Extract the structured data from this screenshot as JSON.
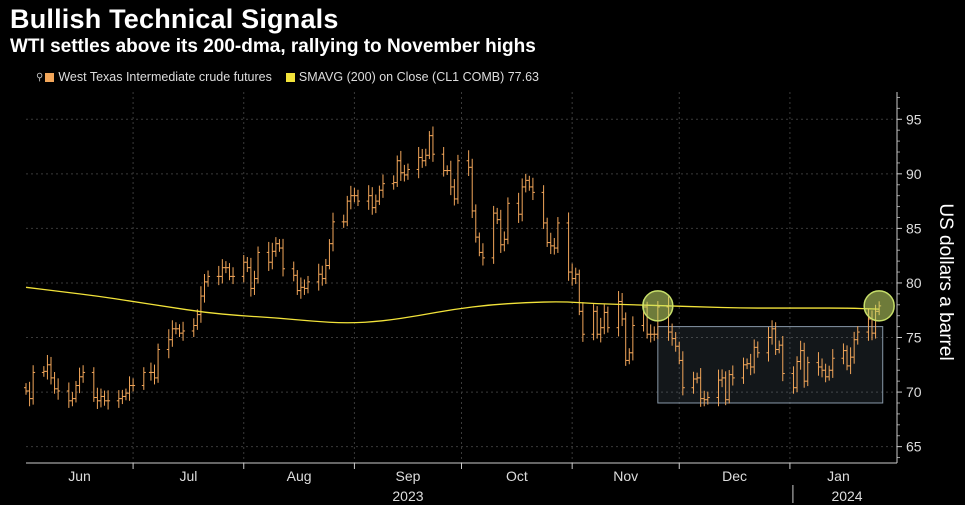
{
  "colors": {
    "price": "#f2a65a",
    "sma": "#f2e33a",
    "background": "#000000",
    "grid": "#3a3a3a",
    "highlight": "#c8e06a",
    "box": "#8898a8"
  },
  "chart_data": {
    "type": "ohlc",
    "title": "Bullish Technical Signals",
    "subtitle": "WTI settles above its 200-dma, rallying to November highs",
    "ylabel": "US dollars a barrel",
    "ylim": [
      63.5,
      97.5
    ],
    "yticks": [
      65,
      70,
      75,
      80,
      85,
      90,
      95
    ],
    "x_range_days": [
      0,
      244
    ],
    "months": [
      {
        "label": "Jun",
        "start_day": 0
      },
      {
        "label": "Jul",
        "start_day": 30
      },
      {
        "label": "Aug",
        "start_day": 61
      },
      {
        "label": "Sep",
        "start_day": 92
      },
      {
        "label": "Oct",
        "start_day": 122
      },
      {
        "label": "Nov",
        "start_day": 153
      },
      {
        "label": "Dec",
        "start_day": 183
      },
      {
        "label": "Jan",
        "start_day": 214
      }
    ],
    "years": [
      {
        "label": "2023",
        "center_day": 107
      },
      {
        "label": "2024",
        "center_day": 230
      }
    ],
    "legend": [
      {
        "label": "West Texas Intermediate crude futures",
        "icon": "bar-icon"
      },
      {
        "label": "SMAVG (200)  on Close (CL1 COMB) 77.63"
      }
    ],
    "series": [
      {
        "name": "West Texas Intermediate crude futures",
        "closes": [
          [
            0,
            70.1
          ],
          [
            1,
            69.4
          ],
          [
            2,
            71.8
          ],
          [
            5,
            71.9
          ],
          [
            6,
            72.5
          ],
          [
            7,
            71.3
          ],
          [
            8,
            70.3
          ],
          [
            9,
            70.1
          ],
          [
            12,
            69.2
          ],
          [
            13,
            69.4
          ],
          [
            14,
            70.6
          ],
          [
            15,
            71.4
          ],
          [
            16,
            71.8
          ],
          [
            19,
            69.5
          ],
          [
            20,
            69.2
          ],
          [
            21,
            69.6
          ],
          [
            22,
            69.2
          ],
          [
            23,
            69.2
          ],
          [
            26,
            69.4
          ],
          [
            27,
            69.6
          ],
          [
            28,
            69.9
          ],
          [
            29,
            70.6
          ],
          [
            30,
            70.6
          ],
          [
            33,
            71.8
          ],
          [
            35,
            71.8
          ],
          [
            36,
            71.3
          ],
          [
            37,
            73.9
          ],
          [
            40,
            74.8
          ],
          [
            41,
            75.8
          ],
          [
            42,
            75.8
          ],
          [
            43,
            75.4
          ],
          [
            44,
            75.6
          ],
          [
            47,
            76.1
          ],
          [
            48,
            77.1
          ],
          [
            49,
            78.8
          ],
          [
            50,
            80.1
          ],
          [
            51,
            80.6
          ],
          [
            54,
            80.6
          ],
          [
            55,
            81.4
          ],
          [
            56,
            81.4
          ],
          [
            57,
            80.6
          ],
          [
            58,
            80.6
          ],
          [
            61,
            81.9
          ],
          [
            62,
            81.4
          ],
          [
            63,
            79.5
          ],
          [
            64,
            80.4
          ],
          [
            65,
            82.8
          ],
          [
            68,
            81.9
          ],
          [
            69,
            82.9
          ],
          [
            70,
            83.6
          ],
          [
            71,
            83.2
          ],
          [
            72,
            81.3
          ],
          [
            75,
            80.7
          ],
          [
            76,
            79.3
          ],
          [
            77,
            79.6
          ],
          [
            78,
            79.5
          ],
          [
            79,
            80.1
          ],
          [
            82,
            80.8
          ],
          [
            83,
            80.4
          ],
          [
            84,
            81.6
          ],
          [
            85,
            83.6
          ],
          [
            86,
            85.6
          ],
          [
            89,
            85.6
          ],
          [
            90,
            87.5
          ],
          [
            91,
            88.0
          ],
          [
            92,
            88.0
          ],
          [
            93,
            87.5
          ],
          [
            96,
            88.0
          ],
          [
            97,
            86.9
          ],
          [
            98,
            87.5
          ],
          [
            99,
            88.5
          ],
          [
            100,
            89.1
          ],
          [
            103,
            89.2
          ],
          [
            104,
            91.2
          ],
          [
            105,
            90.1
          ],
          [
            106,
            89.9
          ],
          [
            107,
            90.4
          ],
          [
            110,
            91.5
          ],
          [
            111,
            91.2
          ],
          [
            112,
            91.7
          ],
          [
            113,
            93.5
          ],
          [
            114,
            91.8
          ],
          [
            117,
            90.3
          ],
          [
            118,
            90.3
          ],
          [
            119,
            88.8
          ],
          [
            120,
            87.7
          ],
          [
            121,
            91.2
          ],
          [
            124,
            90.6
          ],
          [
            125,
            86.6
          ],
          [
            126,
            84.2
          ],
          [
            127,
            82.8
          ],
          [
            128,
            82.3
          ],
          [
            131,
            86.4
          ],
          [
            132,
            85.8
          ],
          [
            133,
            83.5
          ],
          [
            134,
            84.0
          ],
          [
            135,
            87.3
          ],
          [
            138,
            86.3
          ],
          [
            139,
            88.8
          ],
          [
            140,
            89.4
          ],
          [
            141,
            88.8
          ],
          [
            142,
            88.3
          ],
          [
            145,
            85.5
          ],
          [
            146,
            83.7
          ],
          [
            147,
            83.4
          ],
          [
            148,
            83.2
          ],
          [
            149,
            85.5
          ],
          [
            152,
            81.0
          ],
          [
            153,
            80.4
          ],
          [
            154,
            80.8
          ],
          [
            155,
            77.4
          ],
          [
            156,
            75.3
          ],
          [
            159,
            77.4
          ],
          [
            160,
            75.3
          ],
          [
            161,
            75.9
          ],
          [
            162,
            77.3
          ],
          [
            163,
            75.9
          ],
          [
            166,
            78.3
          ],
          [
            167,
            76.7
          ],
          [
            168,
            72.9
          ],
          [
            169,
            73.6
          ],
          [
            170,
            76.1
          ],
          [
            173,
            77.8
          ],
          [
            174,
            75.3
          ],
          [
            175,
            75.3
          ],
          [
            176,
            75.3
          ],
          [
            177,
            77.8
          ],
          [
            180,
            75.5
          ],
          [
            181,
            74.9
          ],
          [
            182,
            74.2
          ],
          [
            183,
            72.9
          ],
          [
            184,
            70.4
          ],
          [
            187,
            71.2
          ],
          [
            188,
            71.3
          ],
          [
            189,
            69.4
          ],
          [
            190,
            69.3
          ],
          [
            191,
            69.5
          ],
          [
            194,
            71.1
          ],
          [
            195,
            71.3
          ],
          [
            196,
            69.3
          ],
          [
            197,
            71.6
          ],
          [
            198,
            71.3
          ],
          [
            201,
            72.5
          ],
          [
            202,
            72.6
          ],
          [
            203,
            72.3
          ],
          [
            204,
            74.1
          ],
          [
            205,
            73.6
          ],
          [
            208,
            75.0
          ],
          [
            209,
            75.8
          ],
          [
            210,
            73.9
          ],
          [
            211,
            74.3
          ],
          [
            212,
            71.7
          ],
          [
            215,
            70.4
          ],
          [
            216,
            72.8
          ],
          [
            217,
            73.8
          ],
          [
            218,
            71.0
          ],
          [
            219,
            72.7
          ],
          [
            222,
            72.3
          ],
          [
            223,
            72.0
          ],
          [
            224,
            71.4
          ],
          [
            225,
            72.0
          ],
          [
            226,
            73.1
          ],
          [
            229,
            73.8
          ],
          [
            230,
            72.4
          ],
          [
            231,
            73.2
          ],
          [
            232,
            74.8
          ],
          [
            233,
            75.5
          ],
          [
            236,
            76.7
          ],
          [
            237,
            75.4
          ],
          [
            238,
            77.4
          ],
          [
            239,
            77.9
          ]
        ]
      },
      {
        "name": "SMAVG (200)",
        "last_value": 77.63,
        "points": [
          [
            0,
            79.6
          ],
          [
            10,
            79.2
          ],
          [
            20,
            78.8
          ],
          [
            30,
            78.3
          ],
          [
            40,
            77.8
          ],
          [
            50,
            77.3
          ],
          [
            60,
            77.0
          ],
          [
            70,
            76.8
          ],
          [
            80,
            76.5
          ],
          [
            90,
            76.3
          ],
          [
            100,
            76.5
          ],
          [
            110,
            77.0
          ],
          [
            120,
            77.6
          ],
          [
            130,
            78.0
          ],
          [
            140,
            78.2
          ],
          [
            150,
            78.3
          ],
          [
            160,
            78.1
          ],
          [
            170,
            78.0
          ],
          [
            180,
            77.9
          ],
          [
            190,
            77.8
          ],
          [
            200,
            77.7
          ],
          [
            210,
            77.7
          ],
          [
            220,
            77.7
          ],
          [
            230,
            77.7
          ],
          [
            239,
            77.6
          ]
        ]
      }
    ],
    "annotations": {
      "circles": [
        [
          177,
          77.9
        ],
        [
          239,
          77.9
        ]
      ],
      "range_box": {
        "x": [
          177,
          240
        ],
        "y": [
          69,
          76
        ]
      }
    }
  }
}
